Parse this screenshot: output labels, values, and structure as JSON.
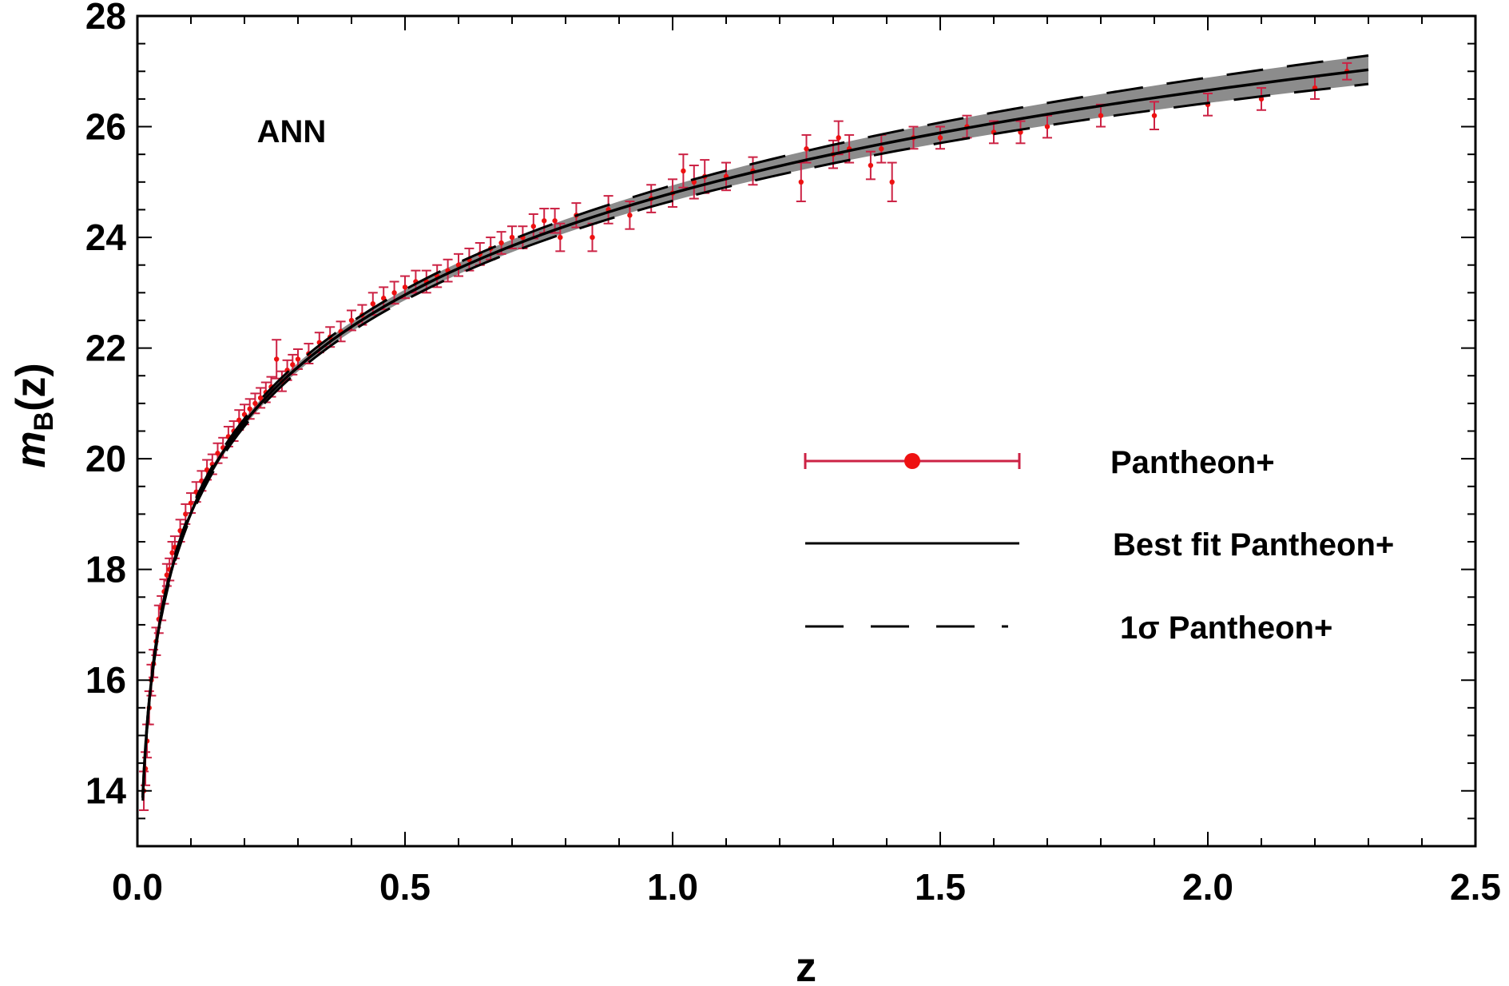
{
  "chart_data": {
    "type": "scatter",
    "title": "",
    "annotation": "ANN",
    "xlabel": "z",
    "ylabel_main": "m",
    "ylabel_sub": "B",
    "ylabel_tail": "(z)",
    "xlim": [
      0.0,
      2.5
    ],
    "ylim": [
      13.0,
      28.0
    ],
    "x_ticks": [
      0.0,
      0.5,
      1.0,
      1.5,
      2.0,
      2.5
    ],
    "x_tick_labels": [
      "0.0",
      "0.5",
      "1.0",
      "1.5",
      "2.0",
      "2.5"
    ],
    "y_ticks": [
      14,
      16,
      18,
      20,
      22,
      24,
      26,
      28
    ],
    "y_tick_labels": [
      "14",
      "16",
      "18",
      "20",
      "22",
      "24",
      "26",
      "28"
    ],
    "grid": false,
    "legend_position": "center-right",
    "legend": [
      {
        "label": "Pantheon+",
        "style": "errorbar-point"
      },
      {
        "label": "Best fit Pantheon+",
        "style": "solid-line"
      },
      {
        "label": "1σ Pantheon+",
        "style": "dashed-line"
      }
    ],
    "colors": {
      "data": "#ee1111",
      "errorbar": "#cc2244",
      "band": "#8c8c8c",
      "best_fit": "#000000",
      "sigma": "#000000"
    },
    "series": [
      {
        "name": "Pantheon+",
        "kind": "errorbar",
        "points": [
          [
            0.012,
            14.0,
            0.35
          ],
          [
            0.015,
            14.4,
            0.3
          ],
          [
            0.018,
            14.9,
            0.3
          ],
          [
            0.022,
            15.5,
            0.3
          ],
          [
            0.026,
            16.0,
            0.28
          ],
          [
            0.03,
            16.3,
            0.25
          ],
          [
            0.035,
            16.7,
            0.25
          ],
          [
            0.04,
            17.1,
            0.25
          ],
          [
            0.045,
            17.3,
            0.22
          ],
          [
            0.05,
            17.6,
            0.22
          ],
          [
            0.055,
            17.9,
            0.2
          ],
          [
            0.06,
            18.0,
            0.2
          ],
          [
            0.065,
            18.3,
            0.2
          ],
          [
            0.07,
            18.4,
            0.2
          ],
          [
            0.08,
            18.7,
            0.2
          ],
          [
            0.09,
            19.0,
            0.18
          ],
          [
            0.1,
            19.2,
            0.18
          ],
          [
            0.11,
            19.4,
            0.18
          ],
          [
            0.12,
            19.6,
            0.18
          ],
          [
            0.13,
            19.8,
            0.18
          ],
          [
            0.14,
            19.9,
            0.18
          ],
          [
            0.15,
            20.1,
            0.18
          ],
          [
            0.16,
            20.2,
            0.18
          ],
          [
            0.17,
            20.4,
            0.18
          ],
          [
            0.18,
            20.5,
            0.18
          ],
          [
            0.19,
            20.7,
            0.18
          ],
          [
            0.2,
            20.8,
            0.18
          ],
          [
            0.21,
            20.9,
            0.18
          ],
          [
            0.22,
            21.0,
            0.18
          ],
          [
            0.23,
            21.1,
            0.18
          ],
          [
            0.24,
            21.2,
            0.18
          ],
          [
            0.25,
            21.3,
            0.18
          ],
          [
            0.26,
            21.8,
            0.35
          ],
          [
            0.27,
            21.4,
            0.18
          ],
          [
            0.28,
            21.6,
            0.18
          ],
          [
            0.29,
            21.7,
            0.18
          ],
          [
            0.3,
            21.8,
            0.18
          ],
          [
            0.32,
            21.9,
            0.18
          ],
          [
            0.34,
            22.1,
            0.18
          ],
          [
            0.36,
            22.2,
            0.18
          ],
          [
            0.38,
            22.3,
            0.18
          ],
          [
            0.4,
            22.5,
            0.18
          ],
          [
            0.42,
            22.6,
            0.18
          ],
          [
            0.44,
            22.8,
            0.2
          ],
          [
            0.46,
            22.9,
            0.2
          ],
          [
            0.48,
            23.0,
            0.2
          ],
          [
            0.5,
            23.1,
            0.2
          ],
          [
            0.52,
            23.2,
            0.2
          ],
          [
            0.54,
            23.2,
            0.2
          ],
          [
            0.56,
            23.3,
            0.2
          ],
          [
            0.58,
            23.4,
            0.2
          ],
          [
            0.6,
            23.5,
            0.2
          ],
          [
            0.62,
            23.6,
            0.2
          ],
          [
            0.64,
            23.7,
            0.2
          ],
          [
            0.66,
            23.8,
            0.2
          ],
          [
            0.68,
            23.9,
            0.2
          ],
          [
            0.7,
            24.0,
            0.2
          ],
          [
            0.72,
            24.0,
            0.2
          ],
          [
            0.74,
            24.2,
            0.22
          ],
          [
            0.76,
            24.3,
            0.22
          ],
          [
            0.78,
            24.3,
            0.22
          ],
          [
            0.79,
            24.0,
            0.25
          ],
          [
            0.82,
            24.4,
            0.22
          ],
          [
            0.85,
            24.0,
            0.25
          ],
          [
            0.88,
            24.5,
            0.25
          ],
          [
            0.92,
            24.4,
            0.25
          ],
          [
            0.96,
            24.7,
            0.25
          ],
          [
            1.0,
            24.8,
            0.25
          ],
          [
            1.02,
            25.2,
            0.3
          ],
          [
            1.04,
            25.0,
            0.3
          ],
          [
            1.06,
            25.1,
            0.3
          ],
          [
            1.1,
            25.1,
            0.25
          ],
          [
            1.15,
            25.2,
            0.25
          ],
          [
            1.24,
            25.0,
            0.35
          ],
          [
            1.25,
            25.6,
            0.25
          ],
          [
            1.3,
            25.5,
            0.25
          ],
          [
            1.31,
            25.8,
            0.3
          ],
          [
            1.33,
            25.6,
            0.25
          ],
          [
            1.37,
            25.3,
            0.25
          ],
          [
            1.39,
            25.6,
            0.25
          ],
          [
            1.41,
            25.0,
            0.35
          ],
          [
            1.45,
            25.8,
            0.2
          ],
          [
            1.5,
            25.8,
            0.2
          ],
          [
            1.55,
            26.0,
            0.2
          ],
          [
            1.6,
            25.9,
            0.2
          ],
          [
            1.65,
            25.9,
            0.2
          ],
          [
            1.7,
            26.0,
            0.2
          ],
          [
            1.8,
            26.2,
            0.2
          ],
          [
            1.9,
            26.2,
            0.25
          ],
          [
            2.0,
            26.4,
            0.2
          ],
          [
            2.1,
            26.5,
            0.2
          ],
          [
            2.2,
            26.7,
            0.2
          ],
          [
            2.26,
            27.0,
            0.15
          ]
        ]
      },
      {
        "name": "Best fit Pantheon+",
        "kind": "line",
        "function": "m_B = -19.3 + 5*log10(d_L/Mpc) + 25; flat LCDM, H0 = 70, Om = 0.3",
        "z_range": [
          0.01,
          2.3
        ]
      },
      {
        "name": "1σ Pantheon+",
        "kind": "band",
        "half_width_base": 0.05,
        "half_width_slope": 0.09
      }
    ]
  }
}
